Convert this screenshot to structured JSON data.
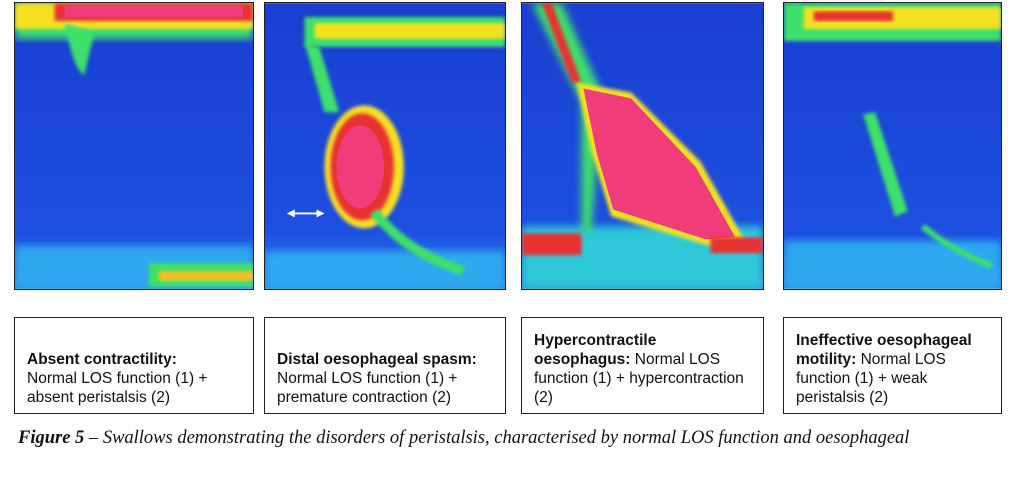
{
  "panels": [
    {
      "heading": "Absent contractility:",
      "text": "Normal LOS function (1) + absent peristalsis (2)"
    },
    {
      "heading": "Distal oesophageal spasm:",
      "text": "Normal LOS function (1) + premature contraction (2)"
    },
    {
      "heading": "Hypercontractile oesophagus:",
      "text": "Normal LOS function (1) + hypercontraction (2)"
    },
    {
      "heading": "Ineffective oesophageal motility:",
      "text": "Normal LOS function (1) + weak peristalsis (2)"
    }
  ],
  "caption": {
    "label": "Figure 5",
    "text": "– Swallows demonstrating the disorders of peristalsis, characterised by normal LOS function and oesophageal"
  }
}
